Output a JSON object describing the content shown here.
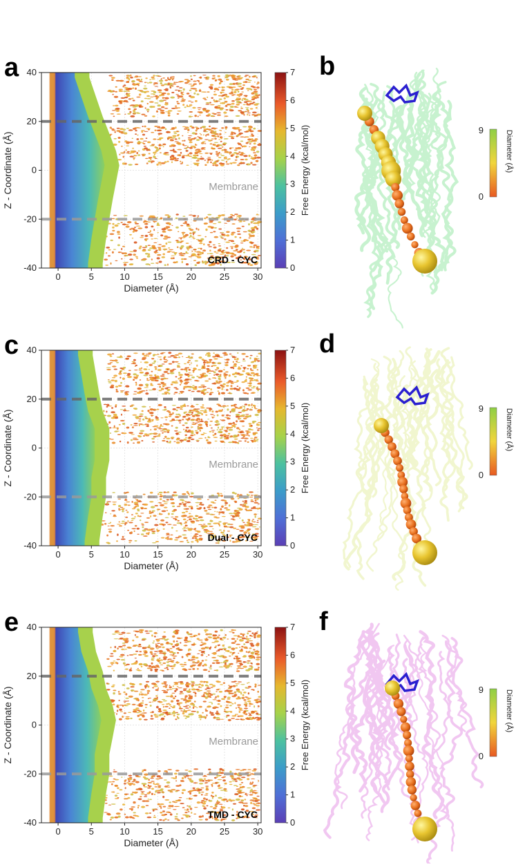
{
  "figure": {
    "panels": [
      {
        "letter": "a",
        "condition": "CRD - CYC",
        "membrane_label": "Membrane",
        "xlabel": "Diameter (Å)",
        "ylabel": "Z - Coordinate (Å)",
        "colorbar_label": "Free Energy (kcal/mol)"
      },
      {
        "letter": "c",
        "condition": "Dual - CYC",
        "membrane_label": "Membrane",
        "xlabel": "Diameter (Å)",
        "ylabel": "Z - Coordinate (Å)",
        "colorbar_label": "Free Energy (kcal/mol)"
      },
      {
        "letter": "e",
        "condition": "TMD - CYC",
        "membrane_label": "Membrane",
        "xlabel": "Diameter (Å)",
        "ylabel": "Z - Coordinate (Å)",
        "colorbar_label": "Free Energy (kcal/mol)"
      }
    ],
    "structures": [
      {
        "letter": "b",
        "protein_color": "#9be8a8",
        "diameter_label": "Diameter (Å)",
        "diameter_min": "0",
        "diameter_max": "9"
      },
      {
        "letter": "d",
        "protein_color": "#e6efa8",
        "diameter_label": "Diameter (Å)",
        "diameter_min": "0",
        "diameter_max": "9"
      },
      {
        "letter": "f",
        "protein_color": "#e79be6",
        "diameter_label": "Diameter (Å)",
        "diameter_min": "0",
        "diameter_max": "9"
      }
    ]
  },
  "chart_data": [
    {
      "type": "heatmap",
      "title": "CRD - CYC",
      "xlabel": "Diameter (Å)",
      "ylabel": "Z - Coordinate (Å)",
      "xlim": [
        -2.5,
        30.5
      ],
      "ylim": [
        -40,
        40
      ],
      "xticks": [
        0,
        5,
        10,
        15,
        20,
        25,
        30
      ],
      "yticks": [
        -40,
        -20,
        0,
        20,
        40
      ],
      "membrane_boundaries_z": [
        20,
        -20
      ],
      "colorbar": {
        "label": "Free Energy (kcal/mol)",
        "min": 0,
        "max": 7,
        "ticks": [
          0,
          1,
          2,
          3,
          4,
          5,
          6,
          7
        ]
      },
      "annotation": "Membrane",
      "channel_profile": [
        {
          "z": 38,
          "diam": 2.5
        },
        {
          "z": 30,
          "diam": 3.5
        },
        {
          "z": 22,
          "diam": 4.5
        },
        {
          "z": 15,
          "diam": 5.5
        },
        {
          "z": 8,
          "diam": 6.5
        },
        {
          "z": 2,
          "diam": 7.0
        },
        {
          "z": -5,
          "diam": 6.5
        },
        {
          "z": -12,
          "diam": 6.0
        },
        {
          "z": -20,
          "diam": 5.5
        },
        {
          "z": -28,
          "diam": 5.0
        },
        {
          "z": -38,
          "diam": 4.5
        }
      ]
    },
    {
      "type": "heatmap",
      "title": "Dual - CYC",
      "xlabel": "Diameter (Å)",
      "ylabel": "Z - Coordinate (Å)",
      "xlim": [
        -2.5,
        30.5
      ],
      "ylim": [
        -40,
        40
      ],
      "xticks": [
        0,
        5,
        10,
        15,
        20,
        25,
        30
      ],
      "yticks": [
        -40,
        -20,
        0,
        20,
        40
      ],
      "membrane_boundaries_z": [
        20,
        -20
      ],
      "colorbar": {
        "label": "Free Energy (kcal/mol)",
        "min": 0,
        "max": 7,
        "ticks": [
          0,
          1,
          2,
          3,
          4,
          5,
          6,
          7
        ]
      },
      "annotation": "Membrane",
      "channel_profile": [
        {
          "z": 38,
          "diam": 3.0
        },
        {
          "z": 30,
          "diam": 3.5
        },
        {
          "z": 22,
          "diam": 4.0
        },
        {
          "z": 15,
          "diam": 4.5
        },
        {
          "z": 8,
          "diam": 5.5
        },
        {
          "z": 2,
          "diam": 5.5
        },
        {
          "z": -5,
          "diam": 5.5
        },
        {
          "z": -12,
          "diam": 5.0
        },
        {
          "z": -20,
          "diam": 5.0
        },
        {
          "z": -28,
          "diam": 4.5
        },
        {
          "z": -38,
          "diam": 4.0
        }
      ]
    },
    {
      "type": "heatmap",
      "title": "TMD - CYC",
      "xlabel": "Diameter (Å)",
      "ylabel": "Z - Coordinate (Å)",
      "xlim": [
        -2.5,
        30.5
      ],
      "ylim": [
        -40,
        40
      ],
      "xticks": [
        0,
        5,
        10,
        15,
        20,
        25,
        30
      ],
      "yticks": [
        -40,
        -20,
        0,
        20,
        40
      ],
      "membrane_boundaries_z": [
        20,
        -20
      ],
      "colorbar": {
        "label": "Free Energy (kcal/mol)",
        "min": 0,
        "max": 7,
        "ticks": [
          0,
          1,
          2,
          3,
          4,
          5,
          6,
          7
        ]
      },
      "annotation": "Membrane",
      "channel_profile": [
        {
          "z": 38,
          "diam": 3.0
        },
        {
          "z": 30,
          "diam": 3.5
        },
        {
          "z": 22,
          "diam": 4.5
        },
        {
          "z": 15,
          "diam": 5.0
        },
        {
          "z": 8,
          "diam": 6.0
        },
        {
          "z": 2,
          "diam": 6.5
        },
        {
          "z": -5,
          "diam": 6.0
        },
        {
          "z": -12,
          "diam": 5.5
        },
        {
          "z": -20,
          "diam": 5.5
        },
        {
          "z": -28,
          "diam": 5.0
        },
        {
          "z": -38,
          "diam": 4.5
        }
      ]
    }
  ]
}
